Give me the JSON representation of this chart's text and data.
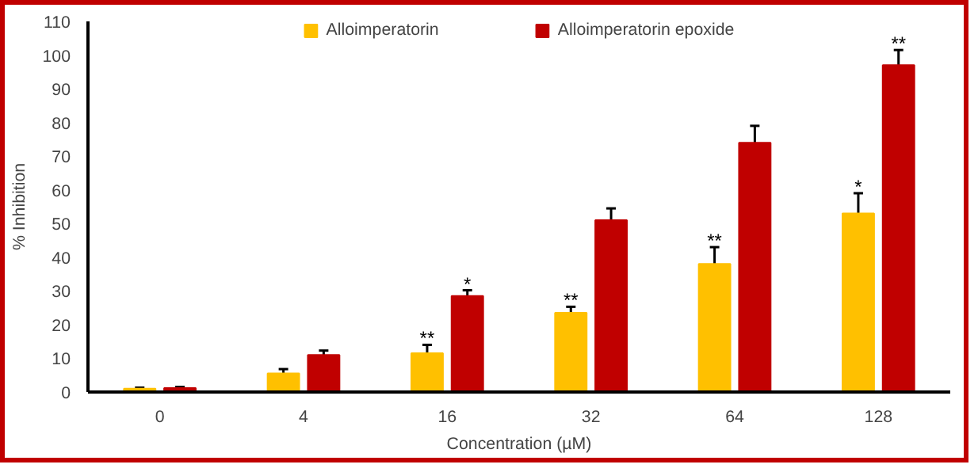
{
  "chart_data": {
    "type": "bar",
    "xlabel": "Concentration (µM)",
    "ylabel": "% Inhibition",
    "categories": [
      "0",
      "4",
      "16",
      "32",
      "64",
      "128"
    ],
    "series": [
      {
        "name": "Alloimperatorin",
        "color": "#ffc000",
        "values": [
          1,
          5.5,
          11.5,
          23.5,
          38,
          53
        ],
        "errors": [
          0.3,
          1.3,
          2.5,
          1.8,
          5,
          6
        ]
      },
      {
        "name": "Alloimperatorin epoxide",
        "color": "#c00000",
        "values": [
          1.2,
          11,
          28.5,
          51,
          74,
          97
        ],
        "errors": [
          0.3,
          1.3,
          1.7,
          3.5,
          5,
          4.5
        ]
      }
    ],
    "ylim": [
      0,
      110
    ],
    "yticks": [
      0,
      10,
      20,
      30,
      40,
      50,
      60,
      70,
      80,
      90,
      100,
      110
    ],
    "grid": false,
    "legend": "top",
    "annotations": [
      {
        "text": "**",
        "x": "16",
        "y": 14
      },
      {
        "text": "*",
        "x": "16",
        "y": 30.2
      },
      {
        "text": "**",
        "x": "32",
        "y": 25.3
      },
      {
        "text": "**",
        "x": "64",
        "y": 43
      },
      {
        "text": "*",
        "x": "128",
        "y": 59
      },
      {
        "text": "**",
        "x": "128",
        "y": 97
      }
    ]
  }
}
